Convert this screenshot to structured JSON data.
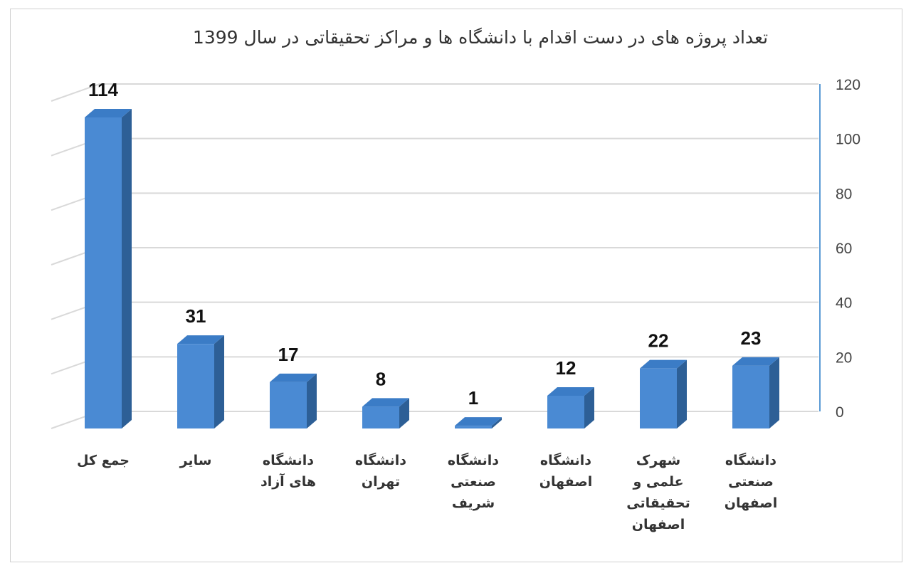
{
  "chart_data": {
    "type": "bar",
    "title": "تعداد پروژه های در دست اقدام با دانشگاه ها و مراکز تحقیقاتی در سال 1399",
    "categories": [
      "جمع کل",
      "سایر",
      "دانشگاه\nهای آزاد",
      "دانشگاه\nتهران",
      "دانشگاه\nصنعتی\nشریف",
      "دانشگاه\nاصفهان",
      "شهرک\nعلمی و\nتحقیقاتی\nاصفهان",
      "دانشگاه\nصنعتی\nاصفهان"
    ],
    "values": [
      114,
      31,
      17,
      8,
      1,
      12,
      22,
      23
    ],
    "ylim": [
      0,
      120
    ],
    "yticks": [
      0,
      20,
      40,
      60,
      80,
      100,
      120
    ],
    "y_axis_side": "right",
    "grid": true,
    "bar_color": "#4a8ad3",
    "bar_side_color": "#2d5f96",
    "bar_top_color": "#3b7cc6"
  }
}
